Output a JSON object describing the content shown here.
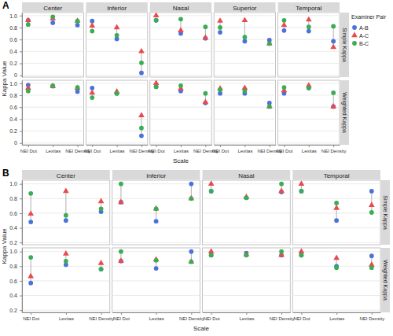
{
  "chart_data": [
    {
      "type": "scatter",
      "title": "A",
      "facets": [
        "Center",
        "Inferior",
        "Nasal",
        "Superior",
        "Temporal"
      ],
      "rows": [
        "Simple Kappa",
        "Weighted Kappa"
      ],
      "categories": [
        "NEI Dot",
        "Lexitas",
        "NEI Density"
      ],
      "x_label": "Scale",
      "y_label": "Kappa Value",
      "ylim": [
        -0.03,
        1.05
      ],
      "yticks": [
        0,
        0.2,
        0.4,
        0.6,
        0.8,
        {
          "value": 1,
          "label": "1.0"
        }
      ],
      "grid": true,
      "legend": "right",
      "legend_title": "Examiner Pair",
      "series": [
        {
          "name": "A-B",
          "color": "#4a72d8",
          "marker": "circle",
          "values": [
            [
              [
                0.92,
                0.88,
                0.84
              ],
              [
                0.91,
                0.61,
                0.04
              ],
              [
                0.92,
                0.7,
                0.62
              ],
              [
                0.72,
                0.57,
                0.59
              ],
              [
                0.75,
                0.74,
                0.57
              ]
            ],
            [
              [
                0.97,
                0.95,
                0.86
              ],
              [
                0.92,
                0.83,
                0.12
              ],
              [
                0.94,
                0.87,
                0.67
              ],
              [
                0.83,
                0.83,
                0.67
              ],
              [
                0.83,
                0.92,
                0.61
              ]
            ]
          ]
        },
        {
          "name": "A-C",
          "color": "#e84a4f",
          "marker": "triangle",
          "values": [
            [
              [
                0.92,
                0.95,
                0.91
              ],
              [
                0.83,
                0.8,
                0.4
              ],
              [
                1.0,
                0.75,
                0.63
              ],
              [
                0.91,
                0.92,
                0.53
              ],
              [
                0.84,
                0.93,
                0.47
              ]
            ],
            [
              [
                0.92,
                0.95,
                0.92
              ],
              [
                0.84,
                0.86,
                0.46
              ],
              [
                1.0,
                0.91,
                0.68
              ],
              [
                0.91,
                0.92,
                0.61
              ],
              [
                0.88,
                0.96,
                0.61
              ]
            ]
          ]
        },
        {
          "name": "B-C",
          "color": "#3aad52",
          "marker": "circle",
          "values": [
            [
              [
                0.85,
                0.98,
                0.91
              ],
              [
                0.74,
                0.67,
                0.21
              ],
              [
                0.92,
                0.94,
                0.81
              ],
              [
                0.8,
                0.64,
                0.53
              ],
              [
                0.92,
                0.81,
                0.82
              ]
            ],
            [
              [
                0.87,
                0.96,
                0.93
              ],
              [
                0.76,
                0.83,
                0.25
              ],
              [
                0.94,
                0.96,
                0.83
              ],
              [
                0.89,
                0.87,
                0.61
              ],
              [
                0.93,
                0.92,
                0.84
              ]
            ]
          ]
        }
      ]
    },
    {
      "type": "scatter",
      "title": "B",
      "facets": [
        "Center",
        "Inferior",
        "Nasal",
        "Temporal"
      ],
      "rows": [
        "Simple Kappa",
        "Weighted Kappa"
      ],
      "categories": [
        "NEI Dot",
        "Lexitas",
        "NEI Density"
      ],
      "x_label": "Scale",
      "y_label": "Kappa Value",
      "ylim": [
        0.17,
        1.05
      ],
      "yticks": [
        0.2,
        0.4,
        0.6,
        0.8,
        {
          "value": 1,
          "label": "1.0"
        }
      ],
      "grid": true,
      "series": [
        {
          "color": "#4a72d8",
          "marker": "circle",
          "values": [
            [
              [
                0.48,
                0.5,
                0.62
              ],
              [
                0.75,
                0.49,
                1.0
              ],
              [
                0.9,
                0.81,
                0.89
              ],
              [
                0.9,
                0.5,
                0.9
              ]
            ],
            [
              [
                0.57,
                0.82,
                0.76
              ],
              [
                0.87,
                0.77,
                1.0
              ],
              [
                0.95,
                0.98,
                0.95
              ],
              [
                0.95,
                0.8,
                0.94
              ]
            ]
          ]
        },
        {
          "color": "#e84a4f",
          "marker": "triangle",
          "values": [
            [
              [
                0.59,
                0.9,
                0.76
              ],
              [
                0.75,
                0.66,
                0.8
              ],
              [
                1.0,
                0.82,
                0.9
              ],
              [
                1.0,
                0.67,
                0.71
              ]
            ],
            [
              [
                0.66,
                0.97,
                0.84
              ],
              [
                0.87,
                0.89,
                0.86
              ],
              [
                1.0,
                0.96,
                0.95
              ],
              [
                1.0,
                0.91,
                0.82
              ]
            ]
          ]
        },
        {
          "color": "#3aad52",
          "marker": "circle",
          "values": [
            [
              [
                0.87,
                0.57,
                0.66
              ],
              [
                1.0,
                0.66,
                0.8
              ],
              [
                0.9,
                0.81,
                1.0
              ],
              [
                0.9,
                0.74,
                0.61
              ]
            ],
            [
              [
                0.92,
                0.87,
                0.76
              ],
              [
                1.0,
                0.88,
                0.86
              ],
              [
                0.95,
                0.95,
                1.0
              ],
              [
                0.95,
                0.78,
                0.78
              ]
            ]
          ]
        }
      ]
    }
  ]
}
